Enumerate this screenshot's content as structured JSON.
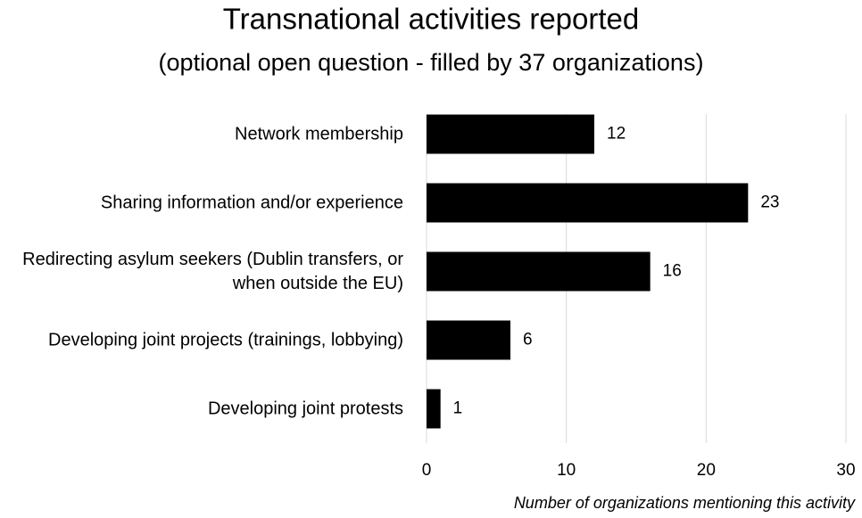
{
  "chart_data": {
    "type": "bar",
    "orientation": "horizontal",
    "title": "Transnational activities reported",
    "subtitle": "(optional open question - filled by 37 organizations)",
    "x_label": "Number of organizations mentioning this activity",
    "categories": [
      "Network membership",
      "Sharing information and/or experience",
      "Redirecting asylum seekers (Dublin transfers, or when outside the EU)",
      "Developing joint projects (trainings, lobbying)",
      "Developing joint protests"
    ],
    "values": [
      12,
      23,
      16,
      6,
      1
    ],
    "color": "#000000",
    "xlim": [
      0,
      30
    ],
    "xticks": [
      0,
      10,
      20,
      30
    ],
    "grid": true
  }
}
